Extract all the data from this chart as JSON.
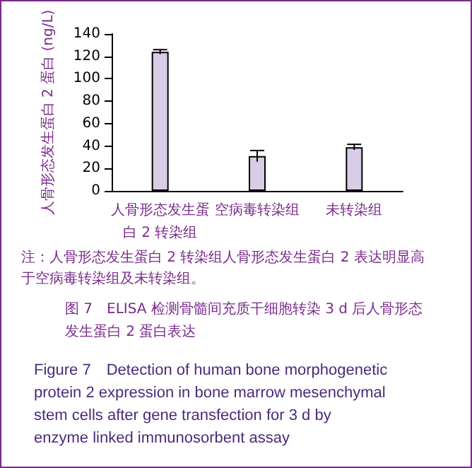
{
  "chart_data": {
    "type": "bar",
    "title": "图 7　ELISA 检测骨髓间充质干细胞转染 3 d 后人骨形态发生蛋白 2 蛋白表达",
    "subtitle": "Figure 7　Detection of human bone morphogenetic protein 2 expression in bone marrow mesenchymal stem cells after gene transfection for 3 d by enzyme linked immunosorbent assay",
    "ylabel": "人骨形态发生蛋白 2 蛋白 (ng/L)",
    "annotations": [
      "注：人骨形态发生蛋白 2 转染组人骨形态发生蛋白 2 表达明显高于空病毒转染组及未转染组。"
    ],
    "categories": [
      "人骨形态发生蛋白 2 转染组",
      "空病毒转染组",
      "未转染组"
    ],
    "values": [
      124,
      31,
      39
    ],
    "errors": [
      2,
      5,
      2.5
    ],
    "color": "#d8cce6",
    "ylim": [
      0,
      140
    ],
    "yticks": [
      0,
      20,
      40,
      60,
      80,
      100,
      120,
      140
    ],
    "grid": false
  }
}
